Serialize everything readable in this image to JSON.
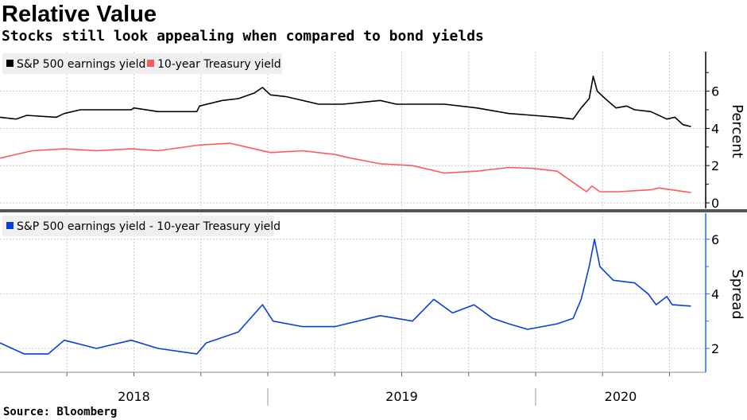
{
  "title": "Relative Value",
  "subtitle": "Stocks still look appealing when compared to bond yields",
  "source": "Source: Bloomberg",
  "colors": {
    "earnings": "#000000",
    "treasury": "#ff5a5a",
    "spread": "#0a3fd6",
    "axis_spread": "#1a6cff"
  },
  "chart_data": [
    {
      "type": "line",
      "ylabel": "Percent",
      "ylim": [
        -0.2,
        8
      ],
      "yticks": [
        "0",
        "2",
        "4",
        "6"
      ],
      "legend_position": "top-left",
      "series": [
        {
          "name": "S&P 500 earnings yield",
          "color": "#000000",
          "points": [
            [
              2018.0,
              4.6
            ],
            [
              2018.06,
              4.5
            ],
            [
              2018.1,
              4.7
            ],
            [
              2018.21,
              4.6
            ],
            [
              2018.24,
              4.8
            ],
            [
              2018.3,
              5.0
            ],
            [
              2018.39,
              5.0
            ],
            [
              2018.49,
              5.0
            ],
            [
              2018.5,
              5.1
            ],
            [
              2018.59,
              4.9
            ],
            [
              2018.735,
              4.9
            ],
            [
              2018.745,
              5.2
            ],
            [
              2018.83,
              5.5
            ],
            [
              2018.89,
              5.6
            ],
            [
              2018.95,
              5.9
            ],
            [
              2018.98,
              6.2
            ],
            [
              2019.01,
              5.8
            ],
            [
              2019.07,
              5.7
            ],
            [
              2019.19,
              5.3
            ],
            [
              2019.28,
              5.3
            ],
            [
              2019.42,
              5.5
            ],
            [
              2019.48,
              5.3
            ],
            [
              2019.54,
              5.3
            ],
            [
              2019.66,
              5.3
            ],
            [
              2019.78,
              5.1
            ],
            [
              2019.9,
              4.8
            ],
            [
              2019.99,
              4.7
            ],
            [
              2020.08,
              4.6
            ],
            [
              2020.14,
              4.5
            ],
            [
              2020.17,
              5.1
            ],
            [
              2020.2,
              5.6
            ],
            [
              2020.215,
              6.8
            ],
            [
              2020.23,
              6.0
            ],
            [
              2020.26,
              5.6
            ],
            [
              2020.3,
              5.1
            ],
            [
              2020.34,
              5.2
            ],
            [
              2020.37,
              5.0
            ],
            [
              2020.43,
              4.9
            ],
            [
              2020.49,
              4.5
            ],
            [
              2020.52,
              4.6
            ],
            [
              2020.55,
              4.2
            ],
            [
              2020.58,
              4.1
            ]
          ]
        },
        {
          "name": "10-year Treasury yield",
          "color": "#ff5a5a",
          "points": [
            [
              2018.0,
              2.4
            ],
            [
              2018.12,
              2.8
            ],
            [
              2018.24,
              2.9
            ],
            [
              2018.36,
              2.8
            ],
            [
              2018.49,
              2.9
            ],
            [
              2018.59,
              2.8
            ],
            [
              2018.74,
              3.1
            ],
            [
              2018.86,
              3.2
            ],
            [
              2018.92,
              3.0
            ],
            [
              2019.01,
              2.7
            ],
            [
              2019.13,
              2.8
            ],
            [
              2019.25,
              2.6
            ],
            [
              2019.31,
              2.4
            ],
            [
              2019.42,
              2.1
            ],
            [
              2019.54,
              2.0
            ],
            [
              2019.66,
              1.6
            ],
            [
              2019.78,
              1.7
            ],
            [
              2019.9,
              1.9
            ],
            [
              2019.99,
              1.85
            ],
            [
              2020.08,
              1.7
            ],
            [
              2020.14,
              1.1
            ],
            [
              2020.19,
              0.6
            ],
            [
              2020.21,
              0.9
            ],
            [
              2020.24,
              0.6
            ],
            [
              2020.31,
              0.6
            ],
            [
              2020.43,
              0.7
            ],
            [
              2020.46,
              0.8
            ],
            [
              2020.58,
              0.55
            ]
          ]
        }
      ]
    },
    {
      "type": "line",
      "ylabel": "Spread",
      "ylim": [
        1.1,
        6.9
      ],
      "yticks": [
        "2",
        "4",
        "6"
      ],
      "xticks": [
        "2018",
        "2019",
        "2020"
      ],
      "legend_position": "top-left",
      "series": [
        {
          "name": "S&P 500 earnings yield - 10-year Treasury yield",
          "color": "#0a3fd6",
          "points": [
            [
              2018.0,
              2.2
            ],
            [
              2018.09,
              1.8
            ],
            [
              2018.18,
              1.8
            ],
            [
              2018.24,
              2.3
            ],
            [
              2018.36,
              2.0
            ],
            [
              2018.49,
              2.3
            ],
            [
              2018.59,
              2.0
            ],
            [
              2018.735,
              1.8
            ],
            [
              2018.77,
              2.2
            ],
            [
              2018.89,
              2.6
            ],
            [
              2018.98,
              3.6
            ],
            [
              2019.02,
              3.0
            ],
            [
              2019.13,
              2.8
            ],
            [
              2019.25,
              2.8
            ],
            [
              2019.42,
              3.2
            ],
            [
              2019.54,
              3.0
            ],
            [
              2019.62,
              3.8
            ],
            [
              2019.69,
              3.3
            ],
            [
              2019.77,
              3.6
            ],
            [
              2019.84,
              3.1
            ],
            [
              2019.9,
              2.9
            ],
            [
              2019.97,
              2.7
            ],
            [
              2020.08,
              2.9
            ],
            [
              2020.14,
              3.1
            ],
            [
              2020.17,
              3.8
            ],
            [
              2020.2,
              5.0
            ],
            [
              2020.22,
              6.0
            ],
            [
              2020.24,
              5.0
            ],
            [
              2020.29,
              4.5
            ],
            [
              2020.37,
              4.4
            ],
            [
              2020.42,
              4.0
            ],
            [
              2020.45,
              3.6
            ],
            [
              2020.49,
              3.9
            ],
            [
              2020.51,
              3.6
            ],
            [
              2020.58,
              3.55
            ]
          ]
        }
      ]
    }
  ]
}
